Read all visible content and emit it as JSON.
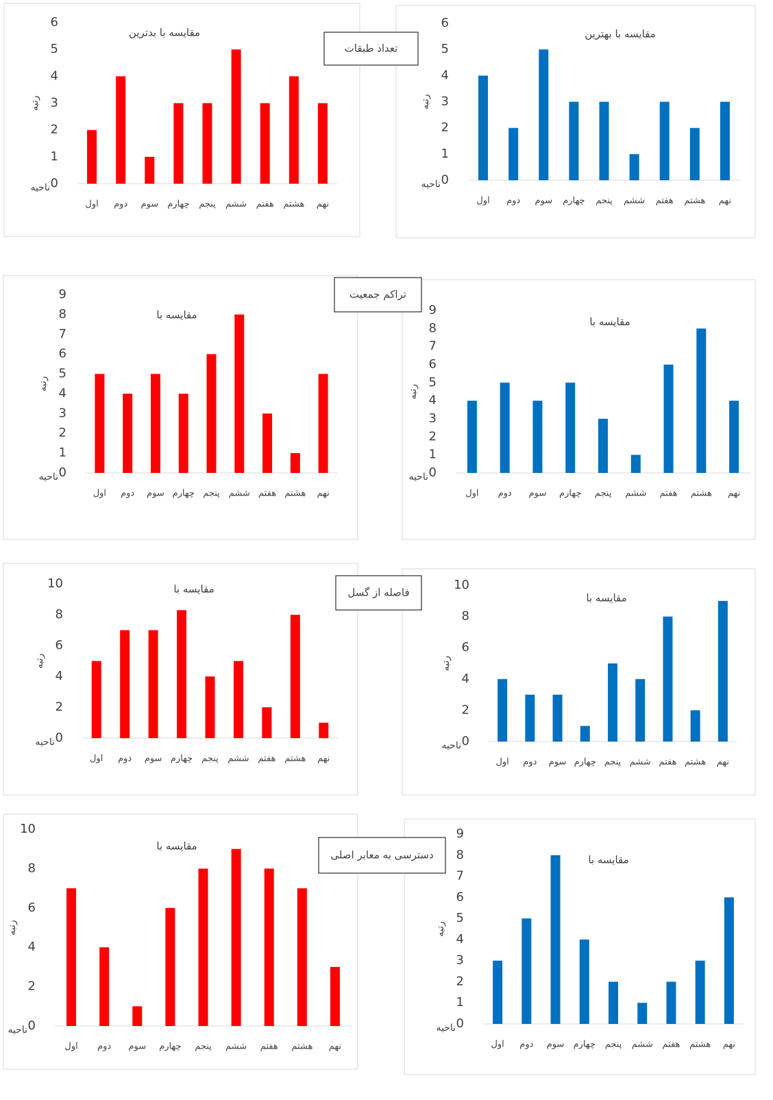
{
  "chart_data": [
    {
      "type": "bar",
      "title": "مقایسه با بدترین",
      "y_label": "رتبه",
      "x_label": "ناحیه",
      "categories": [
        "اول",
        "دوم",
        "سوم",
        "چهارم",
        "پنجم",
        "ششم",
        "هفتم",
        "هشتم",
        "نهم"
      ],
      "values": [
        2,
        4,
        1,
        3,
        3,
        5,
        3,
        4,
        3
      ],
      "color": "#ff0000",
      "ylim": [
        0,
        6
      ],
      "yticks": [
        0,
        1,
        2,
        3,
        4,
        5,
        6
      ]
    },
    {
      "type": "bar",
      "title": "مقایسه با بهترین",
      "y_label": "رتبه",
      "x_label": "ناحیه",
      "categories": [
        "اول",
        "دوم",
        "سوم",
        "چهارم",
        "پنجم",
        "ششم",
        "هفتم",
        "هشتم",
        "نهم"
      ],
      "values": [
        4,
        2,
        5,
        3,
        3,
        1,
        3,
        2,
        3
      ],
      "color": "#0070c0",
      "ylim": [
        0,
        6
      ],
      "yticks": [
        0,
        1,
        2,
        3,
        4,
        5,
        6
      ]
    },
    {
      "type": "bar",
      "title": "مقایسه با",
      "y_label": "رتبه",
      "x_label": "ناحیه",
      "categories": [
        "اول",
        "دوم",
        "سوم",
        "چهارم",
        "پنجم",
        "ششم",
        "هفتم",
        "هشتم",
        "نهم"
      ],
      "values": [
        5,
        4,
        5,
        4,
        6,
        8,
        3,
        1,
        5
      ],
      "color": "#ff0000",
      "ylim": [
        0,
        9
      ],
      "yticks": [
        0,
        1,
        2,
        3,
        4,
        5,
        6,
        7,
        8,
        9
      ]
    },
    {
      "type": "bar",
      "title": "مقایسه با",
      "y_label": "رتبه",
      "x_label": "ناحیه",
      "categories": [
        "اول",
        "دوم",
        "سوم",
        "چهارم",
        "پنجم",
        "ششم",
        "هفتم",
        "هشتم",
        "نهم"
      ],
      "values": [
        4,
        5,
        4,
        5,
        3,
        1,
        6,
        8,
        4
      ],
      "color": "#0070c0",
      "ylim": [
        0,
        9
      ],
      "yticks": [
        0,
        1,
        2,
        3,
        4,
        5,
        6,
        7,
        8,
        9
      ]
    },
    {
      "type": "bar",
      "title": "مقایسه با",
      "y_label": "رتبه",
      "x_label": "ناحیه",
      "categories": [
        "اول",
        "دوم",
        "سوم",
        "چهارم",
        "پنجم",
        "ششم",
        "هفتم",
        "هشتم",
        "نهم"
      ],
      "values": [
        5,
        7,
        7,
        8.3,
        4,
        5,
        2,
        8,
        1
      ],
      "color": "#ff0000",
      "ylim": [
        0,
        10
      ],
      "yticks": [
        0,
        2,
        4,
        6,
        8,
        10
      ]
    },
    {
      "type": "bar",
      "title": "مقایسه با",
      "y_label": "رتبه",
      "x_label": "ناحیه",
      "categories": [
        "اول",
        "دوم",
        "سوم",
        "چهارم",
        "پنجم",
        "ششم",
        "هفتم",
        "هشتم",
        "نهم"
      ],
      "values": [
        4,
        3,
        3,
        1,
        5,
        4,
        8,
        2,
        9
      ],
      "color": "#0070c0",
      "ylim": [
        0,
        10
      ],
      "yticks": [
        0,
        2,
        4,
        6,
        8,
        10
      ]
    },
    {
      "type": "bar",
      "title": "مقایسه با",
      "y_label": "رتبه",
      "x_label": "ناحیه",
      "categories": [
        "اول",
        "دوم",
        "سوم",
        "چهارم",
        "پنجم",
        "ششم",
        "هفتم",
        "هشتم",
        "نهم"
      ],
      "values": [
        7,
        4,
        1,
        6,
        8,
        9,
        8,
        7,
        3
      ],
      "color": "#ff0000",
      "ylim": [
        0,
        10
      ],
      "yticks": [
        0,
        2,
        4,
        6,
        8,
        10
      ]
    },
    {
      "type": "bar",
      "title": "مقایسه با",
      "y_label": "رتبه",
      "x_label": "ناحیه",
      "categories": [
        "اول",
        "دوم",
        "سوم",
        "چهارم",
        "پنجم",
        "ششم",
        "هفتم",
        "هشتم",
        "نهم"
      ],
      "values": [
        3,
        5,
        8,
        4,
        2,
        1,
        2,
        3,
        6
      ],
      "color": "#0070c0",
      "ylim": [
        0,
        9
      ],
      "yticks": [
        0,
        1,
        2,
        3,
        4,
        5,
        6,
        7,
        8,
        9
      ]
    }
  ],
  "section_labels": [
    "تعداد طبقات",
    "تراکم جمعیت",
    "فاصله از گسل",
    "دسترسی به معابر اصلی"
  ]
}
